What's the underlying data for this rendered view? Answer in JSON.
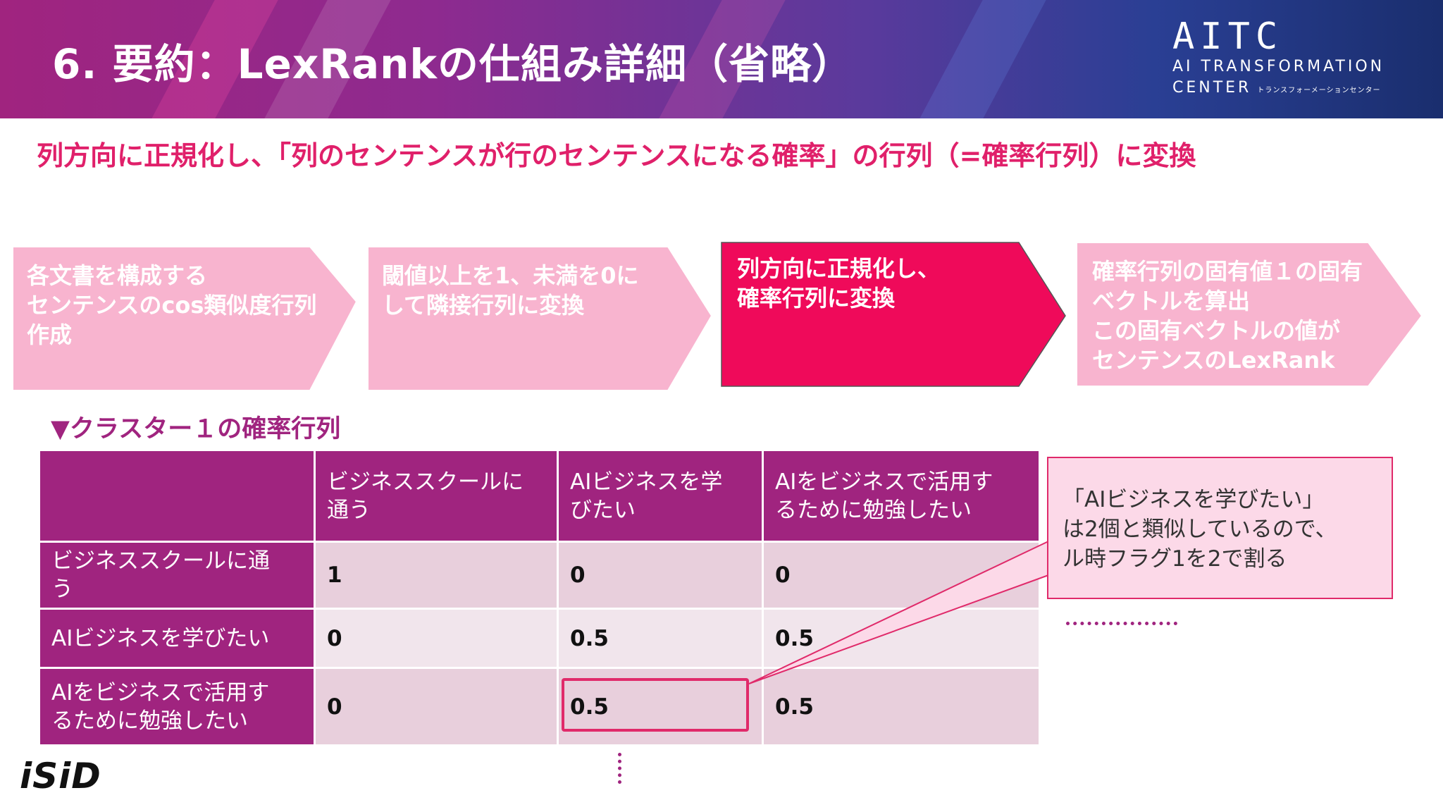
{
  "header": {
    "title": "6. 要約：LexRankの仕組み詳細（省略）",
    "logo": {
      "main": "AITC",
      "line1": "AI TRANSFORMATION",
      "line2": "CENTER",
      "line2_small": "トランスフォーメーションセンター"
    }
  },
  "subtitle": "列方向に正規化し、「列のセンテンスが行のセンテンスになる確率」の行列（=確率行列）に変換",
  "steps": [
    {
      "text": "各文書を構成する\nセンテンスのcos類似度行列\n作成",
      "color": "#f8b4cf"
    },
    {
      "text": "閾値以上を1、未満を0に\nして隣接行列に変換",
      "color": "#f8b4cf"
    },
    {
      "text": "列方向に正規化し、\n確率行列に変換",
      "color": "#ef0a5a"
    },
    {
      "text": "確率行列の固有値１の固有\nベクトルを算出\nこの固有ベクトルの値が\nセンテンスのLexRank",
      "color": "#f8b4cf"
    }
  ],
  "cluster_label": "▼クラスター１の確率行列",
  "matrix": {
    "col_headers": [
      "ビジネススクールに\n通う",
      "AIビジネスを学\nびたい",
      "AIをビジネスで活用す\nるために勉強したい"
    ],
    "rows": [
      {
        "label": "ビジネススクールに通\nう",
        "values": [
          "1",
          "0",
          "0"
        ]
      },
      {
        "label": "AIビジネスを学びたい",
        "values": [
          "0",
          "0.5",
          "0.5"
        ]
      },
      {
        "label": "AIをビジネスで活用す\nるために勉強したい",
        "values": [
          "0",
          "0.5",
          "0.5"
        ]
      }
    ]
  },
  "callout": "「AIビジネスを学びたい」\nは2個と類似しているので、\nル時フラグ1を2で割る",
  "footer_logo": "iSiD"
}
